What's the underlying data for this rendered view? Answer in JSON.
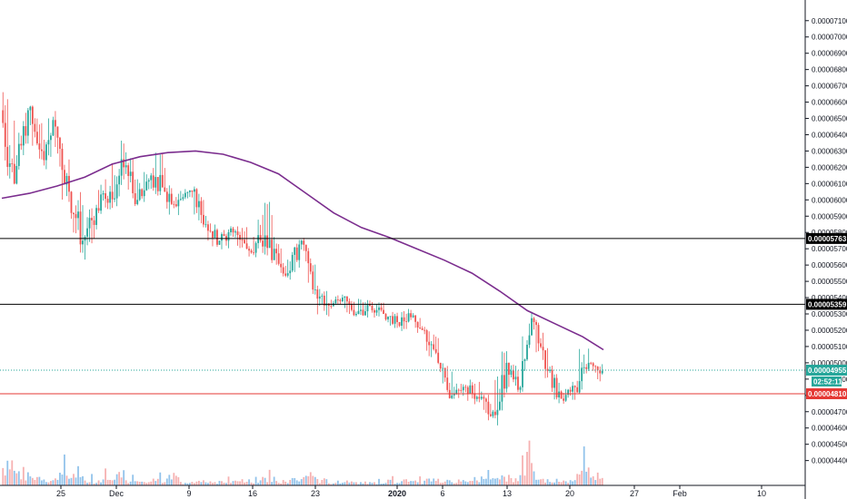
{
  "colors": {
    "up": "#26a69a",
    "down": "#ef5350",
    "volume_up": "#7fb8e8",
    "volume_down": "#f4a3a3",
    "ma": "#7b2d8e",
    "line_black": "#000000",
    "line_red": "#e53935",
    "line_teal_dotted": "#26a69a",
    "axis_text": "#131722"
  },
  "chart_data": {
    "type": "candlestick",
    "y_axis_labels": [
      "0.00007100",
      "0.00007000",
      "0.00006900",
      "0.00006800",
      "0.00006700",
      "0.00006600",
      "0.00006500",
      "0.00006400",
      "0.00006300",
      "0.00006200",
      "0.00006100",
      "0.00006000",
      "0.00005900",
      "0.00005800",
      "0.00005700",
      "0.00005600",
      "0.00005500",
      "0.00005400",
      "0.00005300",
      "0.00005200",
      "0.00005100",
      "0.00005000",
      "0.00004900",
      "0.00004800",
      "0.00004700",
      "0.00004600",
      "0.00004500",
      "0.00004400"
    ],
    "ylim": [
      4.32e-05,
      7.16e-05
    ],
    "x_axis_labels": [
      "25",
      "Dec",
      "9",
      "16",
      "23",
      "2020",
      "6",
      "13",
      "20",
      "27",
      "Feb",
      "10"
    ],
    "x_axis_bold": [
      "2020"
    ],
    "horizontal_lines": [
      {
        "price": 5.763e-05,
        "label": "0.00005763",
        "style": "solid",
        "color_key": "line_black"
      },
      {
        "price": 5.359e-05,
        "label": "0.00005359",
        "style": "solid",
        "color_key": "line_black"
      },
      {
        "price": 4.81e-05,
        "label": "0.00004810",
        "style": "solid",
        "color_key": "line_red"
      }
    ],
    "current_price": {
      "price": 4.955e-05,
      "label": "0.00004955",
      "countdown": "02:52:11"
    },
    "moving_average": [
      {
        "x": 0.0,
        "y": 6.01e-05
      },
      {
        "x": 2.0,
        "y": 6.04e-05
      },
      {
        "x": 4.0,
        "y": 6.085e-05
      },
      {
        "x": 6.0,
        "y": 6.14e-05
      },
      {
        "x": 8.0,
        "y": 6.22e-05
      },
      {
        "x": 10.0,
        "y": 6.265e-05
      },
      {
        "x": 12.0,
        "y": 6.29e-05
      },
      {
        "x": 14.0,
        "y": 6.3e-05
      },
      {
        "x": 16.0,
        "y": 6.28e-05
      },
      {
        "x": 18.0,
        "y": 6.23e-05
      },
      {
        "x": 20.0,
        "y": 6.16e-05
      },
      {
        "x": 22.0,
        "y": 6.04e-05
      },
      {
        "x": 24.0,
        "y": 5.92e-05
      },
      {
        "x": 26.0,
        "y": 5.83e-05
      },
      {
        "x": 28.0,
        "y": 5.77e-05
      },
      {
        "x": 30.0,
        "y": 5.7e-05
      },
      {
        "x": 32.0,
        "y": 5.63e-05
      },
      {
        "x": 34.0,
        "y": 5.55e-05
      },
      {
        "x": 36.0,
        "y": 5.44e-05
      },
      {
        "x": 38.0,
        "y": 5.32e-05
      },
      {
        "x": 40.0,
        "y": 5.24e-05
      },
      {
        "x": 42.0,
        "y": 5.16e-05
      },
      {
        "x": 43.5,
        "y": 5.08e-05
      }
    ],
    "candles": [
      {
        "o": 6.55,
        "h": 6.88,
        "l": 6.05,
        "c": 6.1
      },
      {
        "o": 6.1,
        "h": 6.6,
        "l": 6.05,
        "c": 6.55
      },
      {
        "o": 6.55,
        "h": 6.6,
        "l": 6.2,
        "c": 6.3
      },
      {
        "o": 6.3,
        "h": 6.62,
        "l": 6.15,
        "c": 6.45
      },
      {
        "o": 6.45,
        "h": 6.5,
        "l": 5.8,
        "c": 6.05
      },
      {
        "o": 6.05,
        "h": 6.15,
        "l": 5.6,
        "c": 5.75
      },
      {
        "o": 5.75,
        "h": 6.0,
        "l": 5.55,
        "c": 5.95
      },
      {
        "o": 5.95,
        "h": 6.2,
        "l": 5.85,
        "c": 6.05
      },
      {
        "o": 6.05,
        "h": 6.45,
        "l": 5.9,
        "c": 6.2
      },
      {
        "o": 6.2,
        "h": 6.4,
        "l": 5.95,
        "c": 6.0
      },
      {
        "o": 6.0,
        "h": 6.25,
        "l": 5.95,
        "c": 6.15
      },
      {
        "o": 6.15,
        "h": 6.4,
        "l": 6.0,
        "c": 6.05
      },
      {
        "o": 6.05,
        "h": 6.2,
        "l": 5.85,
        "c": 6.0
      },
      {
        "o": 6.0,
        "h": 6.1,
        "l": 5.92,
        "c": 6.05
      },
      {
        "o": 6.05,
        "h": 6.1,
        "l": 5.8,
        "c": 5.85
      },
      {
        "o": 5.85,
        "h": 5.9,
        "l": 5.65,
        "c": 5.75
      },
      {
        "o": 5.75,
        "h": 5.85,
        "l": 5.65,
        "c": 5.8
      },
      {
        "o": 5.8,
        "h": 5.9,
        "l": 5.65,
        "c": 5.7
      },
      {
        "o": 5.7,
        "h": 5.95,
        "l": 5.6,
        "c": 5.75
      },
      {
        "o": 5.75,
        "h": 6.15,
        "l": 5.6,
        "c": 5.7
      },
      {
        "o": 5.7,
        "h": 5.8,
        "l": 5.5,
        "c": 5.55
      },
      {
        "o": 5.55,
        "h": 5.8,
        "l": 5.45,
        "c": 5.75
      },
      {
        "o": 5.75,
        "h": 5.78,
        "l": 5.38,
        "c": 5.45
      },
      {
        "o": 5.45,
        "h": 5.5,
        "l": 5.22,
        "c": 5.35
      },
      {
        "o": 5.35,
        "h": 5.45,
        "l": 5.3,
        "c": 5.4
      },
      {
        "o": 5.4,
        "h": 5.42,
        "l": 5.25,
        "c": 5.3
      },
      {
        "o": 5.3,
        "h": 5.45,
        "l": 5.25,
        "c": 5.35
      },
      {
        "o": 5.35,
        "h": 5.4,
        "l": 5.25,
        "c": 5.3
      },
      {
        "o": 5.3,
        "h": 5.35,
        "l": 5.18,
        "c": 5.25
      },
      {
        "o": 5.25,
        "h": 5.35,
        "l": 5.15,
        "c": 5.28
      },
      {
        "o": 5.28,
        "h": 5.32,
        "l": 5.15,
        "c": 5.2
      },
      {
        "o": 5.2,
        "h": 5.25,
        "l": 4.95,
        "c": 5.0
      },
      {
        "o": 5.0,
        "h": 5.05,
        "l": 4.75,
        "c": 4.8
      },
      {
        "o": 4.8,
        "h": 4.9,
        "l": 4.75,
        "c": 4.85
      },
      {
        "o": 4.85,
        "h": 4.95,
        "l": 4.72,
        "c": 4.78
      },
      {
        "o": 4.78,
        "h": 4.85,
        "l": 4.6,
        "c": 4.7
      },
      {
        "o": 4.7,
        "h": 5.2,
        "l": 4.55,
        "c": 5.0
      },
      {
        "o": 5.0,
        "h": 5.1,
        "l": 4.8,
        "c": 4.85
      },
      {
        "o": 4.85,
        "h": 5.35,
        "l": 4.8,
        "c": 5.25
      },
      {
        "o": 5.25,
        "h": 5.3,
        "l": 4.85,
        "c": 4.95
      },
      {
        "o": 4.95,
        "h": 5.0,
        "l": 4.72,
        "c": 4.78
      },
      {
        "o": 4.78,
        "h": 4.9,
        "l": 4.72,
        "c": 4.85
      },
      {
        "o": 4.85,
        "h": 5.25,
        "l": 4.8,
        "c": 5.0
      },
      {
        "o": 5.0,
        "h": 5.02,
        "l": 4.85,
        "c": 4.95
      }
    ],
    "volumes": [
      0.72,
      0.48,
      0.31,
      0.22,
      0.6,
      0.35,
      0.18,
      0.28,
      0.45,
      0.2,
      0.15,
      0.26,
      0.32,
      0.12,
      0.2,
      0.16,
      0.14,
      0.22,
      0.18,
      0.28,
      0.15,
      0.24,
      0.3,
      0.18,
      0.12,
      0.14,
      0.1,
      0.12,
      0.16,
      0.18,
      0.14,
      0.2,
      0.22,
      0.18,
      0.15,
      0.25,
      0.42,
      0.3,
      1.0,
      0.3,
      0.18,
      0.22,
      0.6,
      0.28
    ],
    "volume_dirs": [
      "down",
      "up",
      "down",
      "up",
      "down",
      "down",
      "up",
      "up",
      "up",
      "down",
      "up",
      "down",
      "down",
      "up",
      "down",
      "down",
      "up",
      "down",
      "up",
      "down",
      "down",
      "up",
      "down",
      "down",
      "up",
      "down",
      "up",
      "down",
      "down",
      "up",
      "down",
      "down",
      "down",
      "up",
      "down",
      "down",
      "up",
      "down",
      "up",
      "down",
      "down",
      "up",
      "up",
      "down"
    ],
    "price_scale": 1e-05
  }
}
